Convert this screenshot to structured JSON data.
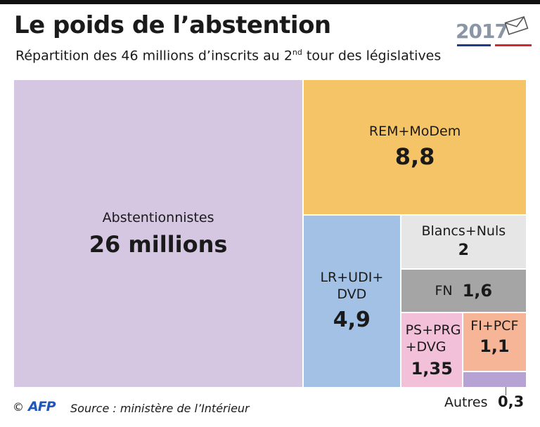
{
  "header": {
    "title": "Le poids de l’abstention",
    "subtitle_before": "Répartition des 46 millions d’inscrits au 2",
    "subtitle_sup": "nd",
    "subtitle_after": " tour des législatives",
    "year": "2017"
  },
  "chart_data": {
    "type": "treemap",
    "title": "Le poids de l’abstention",
    "subtitle": "Répartition des 46 millions d’inscrits au 2nd tour des législatives",
    "unit": "millions",
    "total": 46,
    "segments": [
      {
        "name": "Abstentionnistes",
        "value": 26,
        "value_label": "26 millions",
        "color": "#d5c7e2"
      },
      {
        "name": "REM+MoDem",
        "value": 8.8,
        "value_label": "8,8",
        "color": "#f5c466"
      },
      {
        "name": "LR+UDI+ DVD",
        "value": 4.9,
        "value_label": "4,9",
        "color": "#a2c1e5"
      },
      {
        "name": "Blancs+Nuls",
        "value": 2,
        "value_label": "2",
        "color": "#e6e6e6"
      },
      {
        "name": "FN",
        "value": 1.6,
        "value_label": "1,6",
        "color": "#a5a5a5"
      },
      {
        "name": "PS+PRG +DVG",
        "value": 1.35,
        "value_label": "1,35",
        "color": "#f3c0d9"
      },
      {
        "name": "FI+PCF",
        "value": 1.1,
        "value_label": "1,1",
        "color": "#f6b596"
      },
      {
        "name": "Autres",
        "value": 0.3,
        "value_label": "0,3",
        "color": "#b6a2d3"
      }
    ]
  },
  "footer": {
    "copyright": "©",
    "agency": "AFP",
    "source": "Source : ministère de l’Intérieur"
  }
}
